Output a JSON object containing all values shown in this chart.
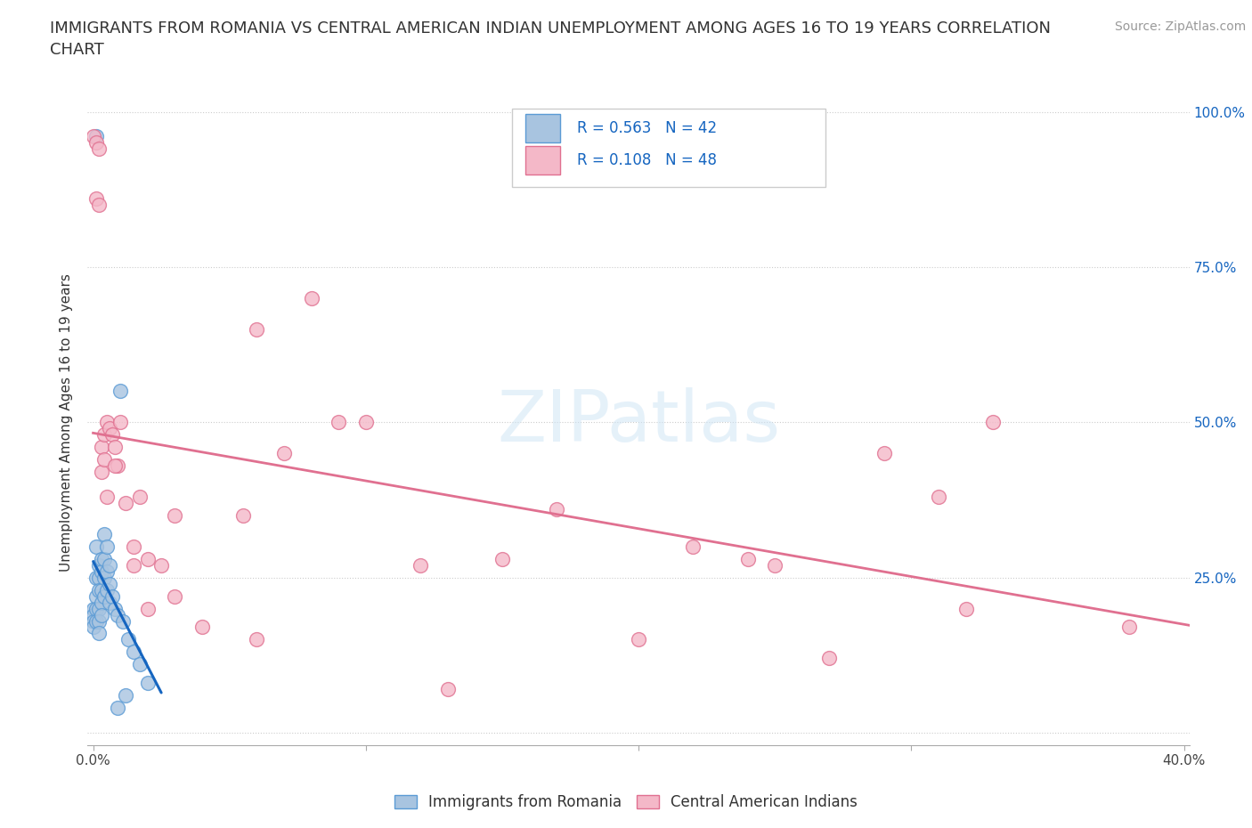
{
  "title": "IMMIGRANTS FROM ROMANIA VS CENTRAL AMERICAN INDIAN UNEMPLOYMENT AMONG AGES 16 TO 19 YEARS CORRELATION\nCHART",
  "source_text": "Source: ZipAtlas.com",
  "ylabel": "Unemployment Among Ages 16 to 19 years",
  "watermark": "ZIPatlas",
  "xlim": [
    -0.002,
    0.402
  ],
  "ylim": [
    -0.02,
    1.02
  ],
  "romania_color": "#a8c4e0",
  "romania_edge": "#5b9bd5",
  "pink_color": "#f4b8c8",
  "pink_edge": "#e07090",
  "romania_R": 0.563,
  "romania_N": 42,
  "pink_R": 0.108,
  "pink_N": 48,
  "legend_label_1": "Immigrants from Romania",
  "legend_label_2": "Central American Indians",
  "romania_x": [
    0.0,
    0.0,
    0.0,
    0.0,
    0.001,
    0.001,
    0.001,
    0.001,
    0.001,
    0.001,
    0.002,
    0.002,
    0.002,
    0.002,
    0.002,
    0.002,
    0.003,
    0.003,
    0.003,
    0.003,
    0.003,
    0.004,
    0.004,
    0.004,
    0.004,
    0.005,
    0.005,
    0.005,
    0.006,
    0.006,
    0.006,
    0.007,
    0.008,
    0.009,
    0.01,
    0.011,
    0.013,
    0.015,
    0.017,
    0.02,
    0.009,
    0.012
  ],
  "romania_y": [
    0.2,
    0.19,
    0.18,
    0.17,
    0.96,
    0.3,
    0.25,
    0.22,
    0.2,
    0.18,
    0.27,
    0.25,
    0.23,
    0.2,
    0.18,
    0.16,
    0.28,
    0.26,
    0.23,
    0.21,
    0.19,
    0.32,
    0.28,
    0.25,
    0.22,
    0.3,
    0.26,
    0.23,
    0.27,
    0.24,
    0.21,
    0.22,
    0.2,
    0.19,
    0.55,
    0.18,
    0.15,
    0.13,
    0.11,
    0.08,
    0.04,
    0.06
  ],
  "pink_x": [
    0.0,
    0.001,
    0.001,
    0.002,
    0.002,
    0.003,
    0.003,
    0.004,
    0.004,
    0.005,
    0.006,
    0.007,
    0.008,
    0.009,
    0.01,
    0.012,
    0.015,
    0.017,
    0.02,
    0.025,
    0.03,
    0.04,
    0.055,
    0.06,
    0.07,
    0.08,
    0.09,
    0.1,
    0.12,
    0.13,
    0.15,
    0.17,
    0.2,
    0.22,
    0.24,
    0.25,
    0.27,
    0.29,
    0.31,
    0.33,
    0.005,
    0.008,
    0.015,
    0.02,
    0.03,
    0.06,
    0.32,
    0.38
  ],
  "pink_y": [
    0.96,
    0.95,
    0.86,
    0.94,
    0.85,
    0.42,
    0.46,
    0.48,
    0.44,
    0.5,
    0.49,
    0.48,
    0.46,
    0.43,
    0.5,
    0.37,
    0.3,
    0.38,
    0.28,
    0.27,
    0.22,
    0.17,
    0.35,
    0.65,
    0.45,
    0.7,
    0.5,
    0.5,
    0.27,
    0.07,
    0.28,
    0.36,
    0.15,
    0.3,
    0.28,
    0.27,
    0.12,
    0.45,
    0.38,
    0.5,
    0.38,
    0.43,
    0.27,
    0.2,
    0.35,
    0.15,
    0.2,
    0.17
  ],
  "title_fontsize": 13,
  "axis_label_fontsize": 11,
  "tick_fontsize": 11,
  "legend_fontsize": 12,
  "source_fontsize": 10,
  "legend_text_color": "#1565C0",
  "right_tick_color": "#1565C0"
}
